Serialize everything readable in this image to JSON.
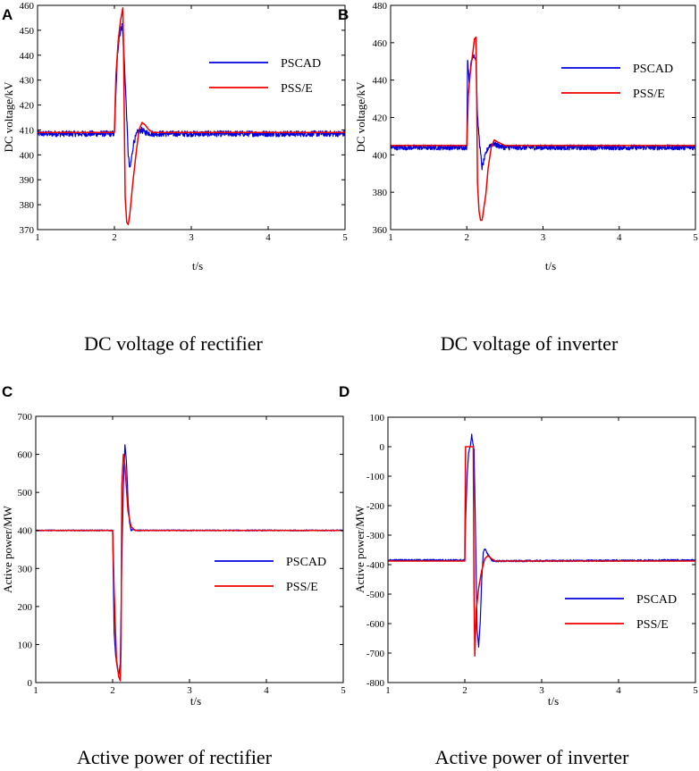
{
  "colors": {
    "pscad": "#0000dd",
    "psse": "#ee0000"
  },
  "chart_data": [
    {
      "type": "line",
      "panel": "A",
      "caption": "DC voltage of rectifier",
      "xlabel": "t/s",
      "ylabel": "DC voltage/kV",
      "xlim": [
        1,
        5
      ],
      "ylim": [
        370,
        460
      ],
      "xticks": [
        1,
        2,
        3,
        4,
        5
      ],
      "yticks": [
        370,
        380,
        390,
        400,
        410,
        420,
        430,
        440,
        450,
        460
      ],
      "legend": "upper right",
      "series": [
        {
          "name": "PSCAD",
          "color": "#0000dd",
          "x": [
            1,
            2.0,
            2.02,
            2.04,
            2.06,
            2.08,
            2.1,
            2.12,
            2.14,
            2.16,
            2.18,
            2.2,
            2.22,
            2.25,
            2.3,
            2.35,
            2.4,
            2.5,
            5
          ],
          "y": [
            408.5,
            408.5,
            425,
            440,
            447,
            450,
            452,
            443,
            430,
            415,
            400,
            394,
            398,
            405,
            409,
            410,
            409,
            408.5,
            408.5
          ],
          "noise": 1.2
        },
        {
          "name": "PSS/E",
          "color": "#ee0000",
          "x": [
            1,
            2.0,
            2.02,
            2.05,
            2.08,
            2.11,
            2.12,
            2.13,
            2.14,
            2.16,
            2.18,
            2.2,
            2.24,
            2.28,
            2.32,
            2.36,
            2.4,
            2.45,
            2.5,
            5
          ],
          "y": [
            409,
            409,
            432,
            446,
            454,
            459,
            440,
            410,
            383,
            373,
            372,
            376,
            389,
            400,
            410,
            413,
            412,
            410,
            409,
            409
          ],
          "noise": 0
        }
      ]
    },
    {
      "type": "line",
      "panel": "B",
      "caption": "DC voltage of inverter",
      "xlabel": "t/s",
      "ylabel": "DC voltage/kV",
      "xlim": [
        1,
        5
      ],
      "ylim": [
        360,
        480
      ],
      "xticks": [
        1,
        2,
        3,
        4,
        5
      ],
      "yticks": [
        360,
        380,
        400,
        420,
        440,
        460,
        480
      ],
      "legend": "upper right",
      "series": [
        {
          "name": "PSCAD",
          "color": "#0000dd",
          "x": [
            1,
            2.0,
            2.01,
            2.03,
            2.06,
            2.09,
            2.12,
            2.14,
            2.17,
            2.2,
            2.23,
            2.27,
            2.3,
            2.35,
            2.4,
            2.5,
            5
          ],
          "y": [
            404,
            404,
            452,
            440,
            450,
            454,
            451,
            420,
            405,
            393,
            398,
            403,
            405,
            406,
            405,
            404,
            404
          ],
          "noise": 1.4
        },
        {
          "name": "PSS/E",
          "color": "#ee0000",
          "x": [
            1,
            2.0,
            2.02,
            2.05,
            2.08,
            2.1,
            2.12,
            2.13,
            2.14,
            2.16,
            2.18,
            2.2,
            2.25,
            2.28,
            2.32,
            2.36,
            2.4,
            2.5,
            5
          ],
          "y": [
            405,
            405,
            432,
            446,
            455,
            462,
            463,
            430,
            385,
            370,
            365,
            365,
            379,
            393,
            404,
            408,
            407,
            405,
            405
          ],
          "noise": 0
        }
      ]
    },
    {
      "type": "line",
      "panel": "C",
      "caption": "Active power of rectifier",
      "xlabel": "t/s",
      "ylabel": "Active power/MW",
      "xlim": [
        1,
        5
      ],
      "ylim": [
        0,
        700
      ],
      "xticks": [
        1,
        2,
        3,
        4,
        5
      ],
      "yticks": [
        0,
        100,
        200,
        300,
        400,
        500,
        600,
        700
      ],
      "legend": "lower right",
      "series": [
        {
          "name": "PSCAD",
          "color": "#0000dd",
          "x": [
            1,
            2.0,
            2.02,
            2.04,
            2.06,
            2.08,
            2.1,
            2.12,
            2.14,
            2.16,
            2.18,
            2.2,
            2.22,
            2.24,
            2.27,
            2.3,
            2.4,
            5
          ],
          "y": [
            400,
            400,
            130,
            70,
            40,
            20,
            50,
            330,
            520,
            625,
            580,
            480,
            420,
            400,
            403,
            400,
            400,
            400
          ],
          "noise": 1.5
        },
        {
          "name": "PSS/E",
          "color": "#ee0000",
          "x": [
            1,
            2.0,
            2.02,
            2.05,
            2.08,
            2.1,
            2.11,
            2.12,
            2.14,
            2.16,
            2.18,
            2.2,
            2.24,
            2.28,
            2.3,
            2.4,
            5
          ],
          "y": [
            400,
            400,
            240,
            60,
            15,
            5,
            100,
            520,
            600,
            570,
            510,
            450,
            410,
            402,
            400,
            400,
            400
          ],
          "noise": 0
        }
      ]
    },
    {
      "type": "line",
      "panel": "D",
      "caption": "Active power of inverter",
      "xlabel": "t/s",
      "ylabel": "Active power/MW",
      "xlim": [
        1,
        5
      ],
      "ylim": [
        -800,
        100
      ],
      "xticks": [
        1,
        2,
        3,
        4,
        5
      ],
      "yticks": [
        -800,
        -700,
        -600,
        -500,
        -400,
        -300,
        -200,
        -100,
        0,
        100
      ],
      "legend": "lower right",
      "series": [
        {
          "name": "PSCAD",
          "color": "#0000dd",
          "x": [
            1,
            2.0,
            2.01,
            2.03,
            2.05,
            2.07,
            2.09,
            2.1,
            2.12,
            2.14,
            2.16,
            2.18,
            2.2,
            2.22,
            2.24,
            2.26,
            2.3,
            2.35,
            2.4,
            5
          ],
          "y": [
            -385,
            -385,
            -250,
            -100,
            -20,
            0,
            40,
            20,
            -10,
            -300,
            -620,
            -680,
            -600,
            -450,
            -360,
            -345,
            -365,
            -385,
            -388,
            -385
          ],
          "noise": 3
        },
        {
          "name": "PSS/E",
          "color": "#ee0000",
          "x": [
            1,
            2.0,
            2.01,
            2.11,
            2.12,
            2.13,
            2.15,
            2.18,
            2.22,
            2.26,
            2.3,
            2.35,
            2.4,
            5
          ],
          "y": [
            -388,
            -388,
            0,
            0,
            -500,
            -710,
            -550,
            -480,
            -420,
            -380,
            -370,
            -380,
            -388,
            -388
          ],
          "noise": 0
        }
      ]
    }
  ]
}
